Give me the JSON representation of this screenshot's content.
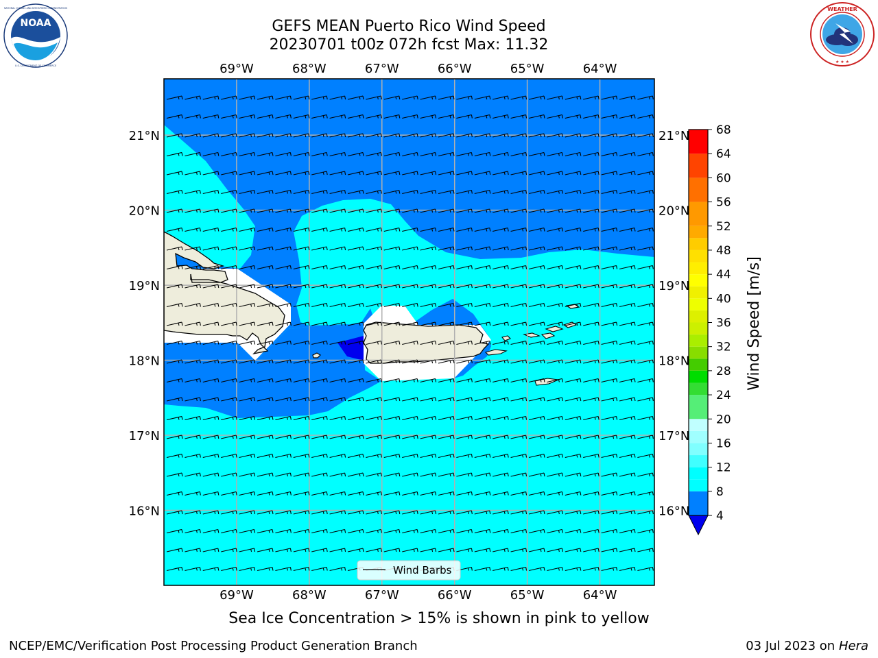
{
  "title": {
    "line1": "GEFS MEAN Puerto Rico Wind Speed",
    "line2": "20230701 t00z 072h fcst   Max: 11.32"
  },
  "logos": {
    "left": {
      "name": "noaa-logo",
      "text": "NOAA",
      "ring_text": "NATIONAL OCEANIC AND ATMOSPHERIC ADMINISTRATION · U.S. DEPARTMENT OF COMMERCE"
    },
    "right": {
      "name": "nws-logo",
      "ring_text": "NATIONAL WEATHER SERVICE"
    }
  },
  "map": {
    "lon_range": [
      -70.0,
      -63.25
    ],
    "lat_range": [
      15.0,
      21.75
    ],
    "lon_ticks": [
      -69,
      -68,
      -67,
      -66,
      -65,
      -64
    ],
    "lon_labels": [
      "69°W",
      "68°W",
      "67°W",
      "66°W",
      "65°W",
      "64°W"
    ],
    "lat_ticks": [
      16,
      17,
      18,
      19,
      20,
      21
    ],
    "lat_labels": [
      "16°N",
      "17°N",
      "18°N",
      "19°N",
      "20°N",
      "21°N"
    ],
    "grid": true,
    "colors": {
      "land": "#eeeddc",
      "coast": "#000000",
      "grid": "#b0b0b0",
      "lt4": "#0000ee",
      "c4_8": "#0080ff",
      "c8_12": "#00ffff"
    },
    "legend": {
      "label": "Wind Barbs",
      "position": "bottom-center"
    }
  },
  "colorbar": {
    "label": "Wind Speed [m/s]",
    "ticks": [
      4,
      8,
      12,
      16,
      20,
      24,
      28,
      32,
      36,
      40,
      44,
      48,
      52,
      56,
      60,
      64,
      68
    ],
    "levels": [
      4,
      8,
      10,
      12,
      14,
      16,
      18,
      20,
      24,
      26,
      28,
      30,
      32,
      34,
      36,
      38,
      40,
      42,
      44,
      46,
      48,
      50,
      52,
      56,
      60,
      64,
      68
    ],
    "colors": [
      "#0080ff",
      "#00ffff",
      "#00ffff",
      "#40ffff",
      "#80ffff",
      "#a0ffff",
      "#c0ffff",
      "#55ee77",
      "#33dd33",
      "#00dd00",
      "#44cc00",
      "#88dd00",
      "#aaee00",
      "#ccf000",
      "#ddf000",
      "#eeff00",
      "#f0f000",
      "#ffff00",
      "#ffee00",
      "#ffe000",
      "#ffcc00",
      "#ffaa00",
      "#ff9900",
      "#ff7000",
      "#ff4400",
      "#ff0000"
    ],
    "extend_below_color": "#0000ee"
  },
  "caption": "Sea Ice Concentration > 15% is shown in pink to yellow",
  "footer": {
    "left": "NCEP/EMC/Verification Post Processing Product Generation Branch",
    "right_prefix": "03 Jul 2023 on ",
    "right_machine": "Hera"
  }
}
